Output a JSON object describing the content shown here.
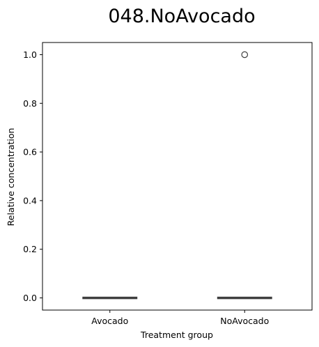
{
  "chart_data": {
    "type": "box",
    "title": "048.NoAvocado",
    "xlabel": "Treatment group",
    "ylabel": "Relative concentration",
    "categories": [
      "Avocado",
      "NoAvocado"
    ],
    "ylim": [
      -0.05,
      1.05
    ],
    "yticks": [
      0.0,
      0.2,
      0.4,
      0.6,
      0.8,
      1.0
    ],
    "ytick_labels": [
      "0.0",
      "0.2",
      "0.4",
      "0.6",
      "0.8",
      "1.0"
    ],
    "grid": false,
    "boxes": [
      {
        "category": "Avocado",
        "whisker_low": 0.0,
        "q1": 0.0,
        "median": 0.0,
        "q3": 0.0,
        "whisker_high": 0.0,
        "outliers": []
      },
      {
        "category": "NoAvocado",
        "whisker_low": 0.0,
        "q1": 0.0,
        "median": 0.0,
        "q3": 0.0,
        "whisker_high": 0.0,
        "outliers": [
          1.0
        ]
      }
    ],
    "colors": {
      "box_line": "#3f3f3f",
      "axis": "#000000",
      "outlier_edge": "#3f3f3f"
    }
  }
}
